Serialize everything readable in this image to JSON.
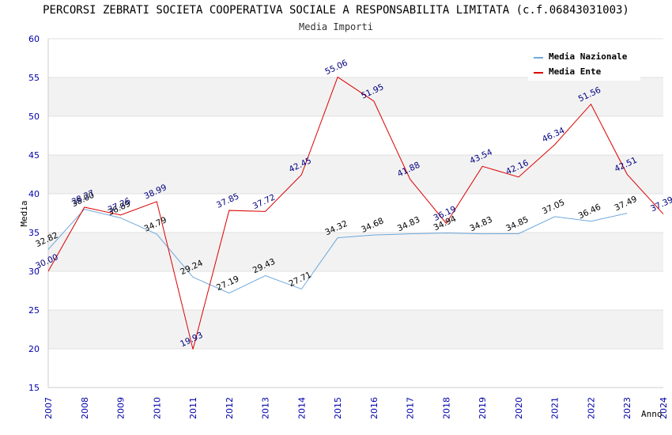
{
  "header": {
    "title": "PERCORSI ZEBRATI SOCIETA COOPERATIVA SOCIALE A RESPONSABILITA LIMITATA (c.f.06843031003)",
    "subtitle": "Media Importi"
  },
  "colors": {
    "nazionale": "#6fa8dc",
    "ente": "#dd0000",
    "band": "#f2f2f2",
    "axis_text": "#0000aa"
  },
  "chart_data": {
    "type": "line",
    "title": "PERCORSI ZEBRATI SOCIETA COOPERATIVA SOCIALE A RESPONSABILITA LIMITATA (c.f.06843031003)",
    "subtitle": "Media Importi",
    "xlabel": "Anno",
    "ylabel": "Media",
    "ylim": [
      15,
      60
    ],
    "yticks": [
      15,
      20,
      25,
      30,
      35,
      40,
      45,
      50,
      55,
      60
    ],
    "x": [
      2007,
      2008,
      2009,
      2010,
      2011,
      2012,
      2013,
      2014,
      2015,
      2016,
      2017,
      2018,
      2019,
      2020,
      2021,
      2022,
      2023,
      2024
    ],
    "legend_position": "top-right",
    "series": [
      {
        "name": "Media Nazionale",
        "color": "#6fa8dc",
        "values": [
          32.82,
          38.0,
          36.89,
          34.79,
          29.24,
          27.19,
          29.43,
          27.71,
          34.32,
          34.68,
          34.83,
          34.94,
          34.83,
          34.85,
          37.05,
          36.46,
          37.49,
          null
        ],
        "labels": [
          "32.82",
          "38.00",
          "36.89",
          "34.79",
          "29.24",
          "27.19",
          "29.43",
          "27.71",
          "34.32",
          "34.68",
          "34.83",
          "34.94",
          "34.83",
          "34.85",
          "37.05",
          "36.46",
          "37.49",
          ""
        ]
      },
      {
        "name": "Media Ente",
        "color": "#dd0000",
        "values": [
          30.0,
          38.27,
          37.26,
          38.99,
          19.93,
          37.85,
          37.72,
          42.45,
          55.06,
          51.95,
          41.88,
          36.19,
          43.54,
          42.16,
          46.34,
          51.56,
          42.51,
          37.39
        ],
        "labels": [
          "30.00",
          "38.27",
          "37.26",
          "38.99",
          "19.93",
          "37.85",
          "37.72",
          "42.45",
          "55.06",
          "51.95",
          "41.88",
          "36.19",
          "43.54",
          "42.16",
          "46.34",
          "51.56",
          "42.51",
          "37.39"
        ]
      }
    ]
  }
}
